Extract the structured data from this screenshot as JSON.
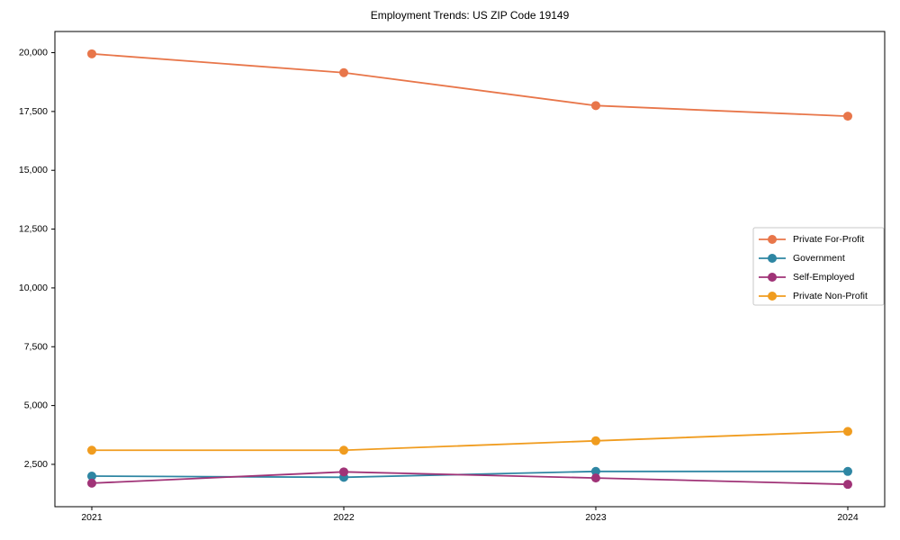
{
  "chart_data": {
    "type": "line",
    "title": "Employment Trends: US ZIP Code 19149",
    "x_labels": [
      "2021",
      "2022",
      "2023",
      "2024"
    ],
    "series": [
      {
        "name": "Private For-Profit",
        "color": "#e8764a",
        "values": [
          19950,
          19150,
          17750,
          17300
        ]
      },
      {
        "name": "Government",
        "color": "#2e86a3",
        "values": [
          2000,
          1950,
          2200,
          2200
        ]
      },
      {
        "name": "Self-Employed",
        "color": "#a03377",
        "values": [
          1700,
          2180,
          1920,
          1650
        ]
      },
      {
        "name": "Private Non-Profit",
        "color": "#f09c1f",
        "values": [
          3100,
          3100,
          3500,
          3900
        ]
      }
    ],
    "ylim": [
      700,
      20900
    ],
    "yticks": [
      2500,
      5000,
      7500,
      10000,
      12500,
      15000,
      17500,
      20000
    ],
    "ytick_labels": [
      "2,500",
      "5,000",
      "7,500",
      "10,000",
      "12,500",
      "15,000",
      "17,500",
      "20,000"
    ],
    "legend_position": "center right",
    "grid": false,
    "marker": "circle",
    "axis_color": "#000000",
    "legend_border_color": "#c8c8c8",
    "background_color": "#ffffff"
  }
}
